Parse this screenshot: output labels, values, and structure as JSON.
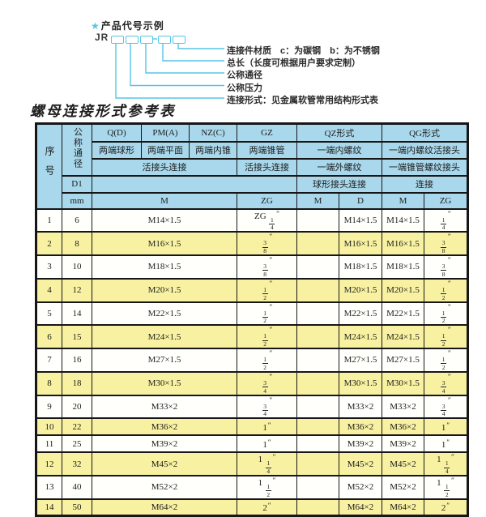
{
  "diagram": {
    "star": "★",
    "heading": "产品代号示例",
    "prefix": "JR",
    "labels": [
      "连接件材质　c：为碳钢　b：为不锈钢",
      "总长（长度可根据用户要求定制）",
      "公称通径",
      "公称压力",
      "连接形式：见金属软管常用结构形式表"
    ]
  },
  "table": {
    "title": "螺母连接形式参考表",
    "header": {
      "seq": "序号",
      "dn": "公称通径",
      "d1": "D1",
      "mm": "mm",
      "q": "Q(D)",
      "q_sub": "两端球形",
      "pm": "PM(A)",
      "pm_sub": "两端平面",
      "nz": "NZ(C)",
      "nz_sub": "两端内锥",
      "gz": "GZ",
      "gz_sub": "两端锥管",
      "union_left": "活接头连接",
      "union_gz": "活接头连接",
      "qz": "QZ形式",
      "qz_sub1": "一端内螺纹",
      "qz_sub2": "一端外螺纹",
      "qz_sub3": "球形接头连接",
      "qg": "QG形式",
      "qg_sub1": "一端内螺纹活接头",
      "qg_sub2": "一端锥管螺纹接头",
      "qg_sub3": "连接",
      "col_m": "M",
      "col_zg": "ZG",
      "col_d": "D"
    },
    "rows": [
      {
        "no": "1",
        "mm": "6",
        "m": "M14×1.5",
        "gz": "ZG 1/4″",
        "qz_m": "",
        "qz_d": "M14×1.5",
        "qg_m": "M14×1.5",
        "qg_zg": "1/4″"
      },
      {
        "no": "2",
        "mm": "8",
        "m": "M16×1.5",
        "gz": "3/8″",
        "qz_m": "",
        "qz_d": "M16×1.5",
        "qg_m": "M16×1.5",
        "qg_zg": "3/8″"
      },
      {
        "no": "3",
        "mm": "10",
        "m": "M18×1.5",
        "gz": "3/8″",
        "qz_m": "",
        "qz_d": "M18×1.5",
        "qg_m": "M18×1.5",
        "qg_zg": "3/8″"
      },
      {
        "no": "4",
        "mm": "12",
        "m": "M20×1.5",
        "gz": "1/2″",
        "qz_m": "",
        "qz_d": "M20×1.5",
        "qg_m": "M20×1.5",
        "qg_zg": "1/2″"
      },
      {
        "no": "5",
        "mm": "14",
        "m": "M22×1.5",
        "gz": "1/2″",
        "qz_m": "",
        "qz_d": "M22×1.5",
        "qg_m": "M22×1.5",
        "qg_zg": "1/2″"
      },
      {
        "no": "6",
        "mm": "15",
        "m": "M24×1.5",
        "gz": "1/2″",
        "qz_m": "",
        "qz_d": "M24×1.5",
        "qg_m": "M24×1.5",
        "qg_zg": "1/2″"
      },
      {
        "no": "7",
        "mm": "16",
        "m": "M27×1.5",
        "gz": "1/2″",
        "qz_m": "",
        "qz_d": "M27×1.5",
        "qg_m": "M27×1.5",
        "qg_zg": "1/2″"
      },
      {
        "no": "8",
        "mm": "18",
        "m": "M30×1.5",
        "gz": "3/4″",
        "qz_m": "",
        "qz_d": "M30×1.5",
        "qg_m": "M30×1.5",
        "qg_zg": "3/4″"
      },
      {
        "no": "9",
        "mm": "20",
        "m": "M33×2",
        "gz": "3/4″",
        "qz_m": "",
        "qz_d": "M33×2",
        "qg_m": "M33×2",
        "qg_zg": "3/4″"
      },
      {
        "no": "10",
        "mm": "22",
        "m": "M36×2",
        "gz": "1″",
        "qz_m": "",
        "qz_d": "M36×2",
        "qg_m": "M36×2",
        "qg_zg": "1″"
      },
      {
        "no": "11",
        "mm": "25",
        "m": "M39×2",
        "gz": "1″",
        "qz_m": "",
        "qz_d": "M39×2",
        "qg_m": "M39×2",
        "qg_zg": "1″"
      },
      {
        "no": "12",
        "mm": "32",
        "m": "M45×2",
        "gz": "1 1/4″",
        "qz_m": "",
        "qz_d": "M45×2",
        "qg_m": "M45×2",
        "qg_zg": "1 1/4″"
      },
      {
        "no": "13",
        "mm": "40",
        "m": "M52×2",
        "gz": "1 1/2″",
        "qz_m": "",
        "qz_d": "M52×2",
        "qg_m": "M52×2",
        "qg_zg": "1 1/2″"
      },
      {
        "no": "14",
        "mm": "50",
        "m": "M64×2",
        "gz": "2″",
        "qz_m": "",
        "qz_d": "M64×2",
        "qg_m": "M64×2",
        "qg_zg": "2″"
      }
    ]
  },
  "colors": {
    "header_blue": "#a9d8ec",
    "row_yellow": "#f7f1a1",
    "border": "#161616",
    "line_cyan": "#55c6e6"
  }
}
